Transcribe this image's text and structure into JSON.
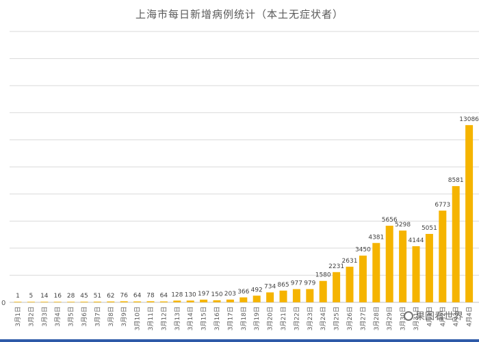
{
  "chart_data": {
    "type": "bar",
    "title": "上海市每日新增病例统计（本土无症状者）",
    "xlabel": "",
    "ylabel": "",
    "ylim": [
      0,
      20000
    ],
    "grid": true,
    "legend": "none",
    "bar_color": "#f5b400",
    "y_ticks_visible": [
      "0"
    ],
    "categories": [
      "3月1日",
      "3月2日",
      "3月3日",
      "3月4日",
      "3月5日",
      "3月6日",
      "3月7日",
      "3月8日",
      "3月9日",
      "3月10日",
      "3月11日",
      "3月12日",
      "3月13日",
      "3月14日",
      "3月15日",
      "3月16日",
      "3月17日",
      "3月18日",
      "3月19日",
      "3月20日",
      "3月21日",
      "3月22日",
      "3月23日",
      "3月24日",
      "3月25日",
      "3月26日",
      "3月27日",
      "3月28日",
      "3月29日",
      "3月30日",
      "3月31日",
      "4月1日",
      "4月2日",
      "4月3日",
      "4月4日"
    ],
    "values": [
      1,
      5,
      14,
      16,
      28,
      45,
      51,
      62,
      76,
      64,
      78,
      64,
      128,
      130,
      197,
      150,
      203,
      366,
      492,
      734,
      865,
      977,
      979,
      1580,
      2231,
      2631,
      3450,
      4381,
      5656,
      5298,
      4144,
      5051,
      6773,
      8581,
      13086
    ],
    "value_labels": [
      "1",
      "5",
      "14",
      "16",
      "28",
      "45",
      "51",
      "62",
      "76",
      "64",
      "78",
      "64",
      "128",
      "130",
      "197",
      "150",
      "203",
      "366",
      "492",
      "734",
      "865",
      "977",
      "979",
      "1580",
      "2231",
      "2631",
      "3450",
      "4381",
      "5656",
      "5298",
      "4144",
      "5051",
      "6773",
      "8581",
      "13086"
    ]
  },
  "watermark": {
    "text": "果图看世界"
  }
}
